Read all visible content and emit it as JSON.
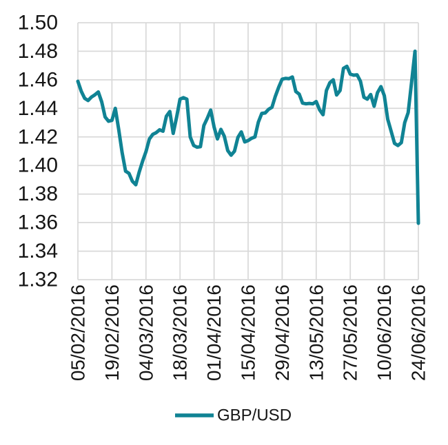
{
  "chart_data": {
    "type": "line",
    "title": "",
    "x_axis": {
      "tick_labels": [
        "05/02/2016",
        "19/02/2016",
        "04/03/2016",
        "18/03/2016",
        "01/04/2016",
        "15/04/2016",
        "29/04/2016",
        "13/05/2016",
        "27/05/2016",
        "10/06/2016",
        "24/06/2016"
      ],
      "tick_value_indices": [
        0,
        10,
        20,
        30,
        40,
        50,
        60,
        70,
        80,
        90,
        100
      ],
      "points_per_tick_interval": 10
    },
    "y_axis": {
      "tick_labels": [
        "1.50",
        "1.48",
        "1.46",
        "1.44",
        "1.42",
        "1.40",
        "1.38",
        "1.36",
        "1.34",
        "1.32"
      ],
      "tick_values": [
        1.5,
        1.48,
        1.46,
        1.44,
        1.42,
        1.4,
        1.38,
        1.36,
        1.34,
        1.32
      ],
      "min": 1.32,
      "max": 1.5
    },
    "grid": true,
    "legend": {
      "position": "bottom",
      "label": "GBP/USD"
    },
    "series": [
      {
        "name": "GBP/USD",
        "color": "#108394",
        "values": [
          1.459,
          1.452,
          1.447,
          1.4455,
          1.448,
          1.4495,
          1.4515,
          1.4445,
          1.434,
          1.431,
          1.4316,
          1.44,
          1.425,
          1.409,
          1.396,
          1.3945,
          1.389,
          1.3865,
          1.3953,
          1.403,
          1.4097,
          1.4185,
          1.4218,
          1.423,
          1.425,
          1.424,
          1.4345,
          1.4378,
          1.4225,
          1.434,
          1.4465,
          1.4475,
          1.4465,
          1.42,
          1.414,
          1.4128,
          1.4132,
          1.428,
          1.433,
          1.4388,
          1.427,
          1.4186,
          1.4253,
          1.4205,
          1.4105,
          1.4072,
          1.41,
          1.4197,
          1.4235,
          1.4165,
          1.4175,
          1.419,
          1.42,
          1.4303,
          1.4365,
          1.4368,
          1.4393,
          1.4408,
          1.4485,
          1.455,
          1.4605,
          1.461,
          1.4608,
          1.462,
          1.4518,
          1.45,
          1.4437,
          1.4432,
          1.4435,
          1.4432,
          1.4448,
          1.439,
          1.4356,
          1.4525,
          1.458,
          1.46,
          1.4494,
          1.4525,
          1.468,
          1.4695,
          1.464,
          1.4633,
          1.4635,
          1.459,
          1.4478,
          1.4465,
          1.4497,
          1.4415,
          1.451,
          1.4552,
          1.4489,
          1.4325,
          1.424,
          1.4155,
          1.414,
          1.416,
          1.43,
          1.437,
          1.458,
          1.48,
          1.3595
        ]
      }
    ]
  },
  "colors": {
    "line": "#108394",
    "gridline": "#D9D9D9",
    "axis_text": "#151515",
    "background": "#FFFFFF"
  }
}
